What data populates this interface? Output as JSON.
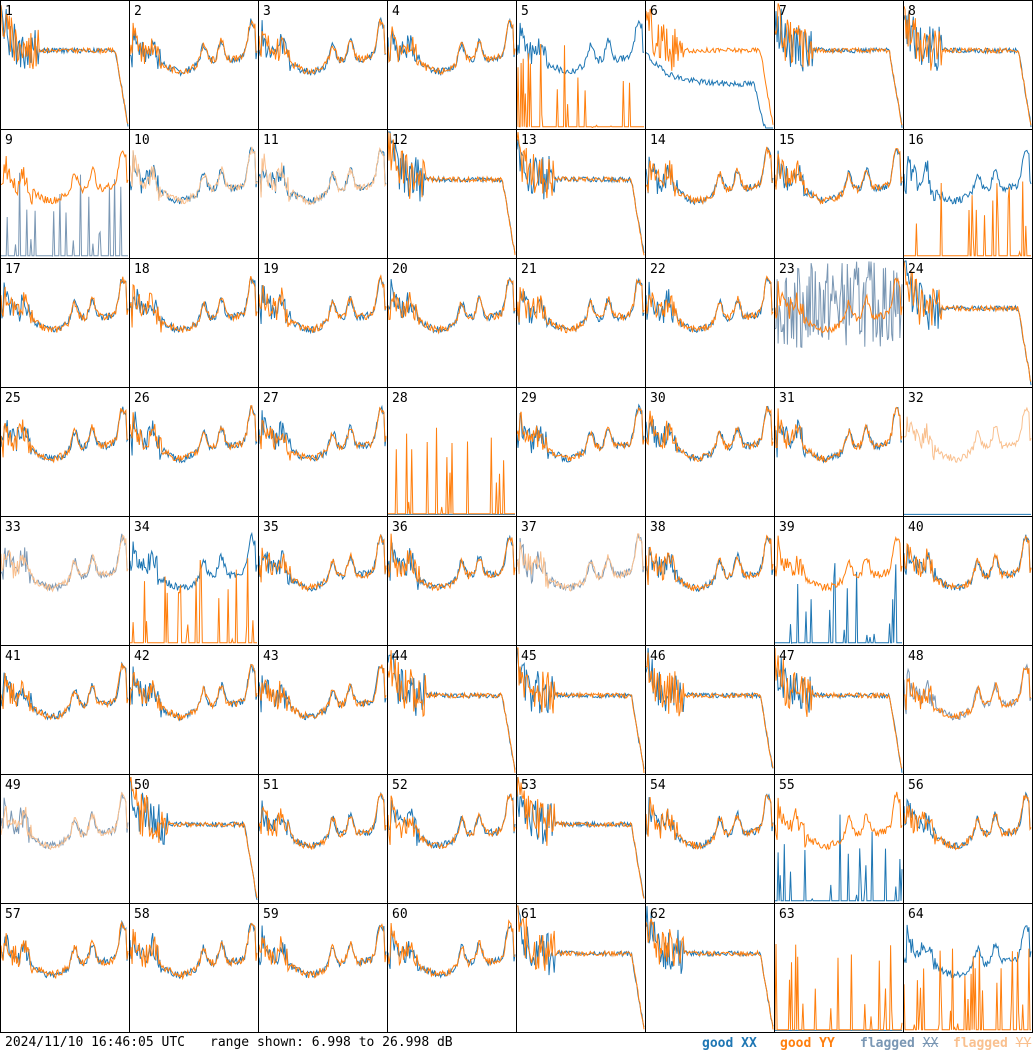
{
  "chart_data": {
    "type": "line",
    "layout": "small-multiples 8x8",
    "y_range_db": [
      6.998,
      26.998
    ],
    "panel_ids": [
      "1",
      "2",
      "3",
      "4",
      "5",
      "6",
      "7",
      "8",
      "9",
      "10",
      "11",
      "12",
      "13",
      "14",
      "15",
      "16",
      "17",
      "18",
      "19",
      "20",
      "21",
      "22",
      "23",
      "24",
      "25",
      "26",
      "27",
      "28",
      "29",
      "30",
      "31",
      "32",
      "33",
      "34",
      "35",
      "36",
      "37",
      "38",
      "39",
      "40",
      "41",
      "42",
      "43",
      "44",
      "45",
      "46",
      "47",
      "48",
      "49",
      "50",
      "51",
      "52",
      "53",
      "54",
      "55",
      "56",
      "57",
      "58",
      "59",
      "60",
      "61",
      "62",
      "63",
      "64"
    ],
    "series_styles": {
      "good_xx": "#1f77b4",
      "good_yy": "#ff7f0e",
      "flagged_xx": "#7a97b4",
      "flagged_yy": "#f9c08f"
    },
    "panel_status": {
      "5": "yy_flagged_low",
      "6": "xx_drop",
      "9": "xx_flagged_spikes",
      "10": "yy_flagged",
      "11": "yy_flagged",
      "16": "yy_flagged_low",
      "23": "xx_flagged_noise",
      "28": "both_dead",
      "32": "yy_flagged_only",
      "33": "both_flagged",
      "34": "yy_dead",
      "37": "both_flagged",
      "39": "xx_dead",
      "48": "xx_flagged",
      "49": "both_flagged",
      "55": "xx_dead",
      "63": "both_dead",
      "64": "yy_dead"
    }
  },
  "footer": {
    "timestamp": "2024/11/10 16:46:05 UTC",
    "range_text": "range shown: 6.998 to 26.998 dB",
    "legend": [
      {
        "prefix": "good ",
        "pol": "XX",
        "color": "#1f77b4"
      },
      {
        "prefix": "good ",
        "pol": "YY",
        "color": "#ff7f0e"
      },
      {
        "prefix": "flagged ",
        "pol": "XX",
        "color": "#7a97b4"
      },
      {
        "prefix": "flagged ",
        "pol": "YY",
        "color": "#f9c08f"
      }
    ]
  }
}
